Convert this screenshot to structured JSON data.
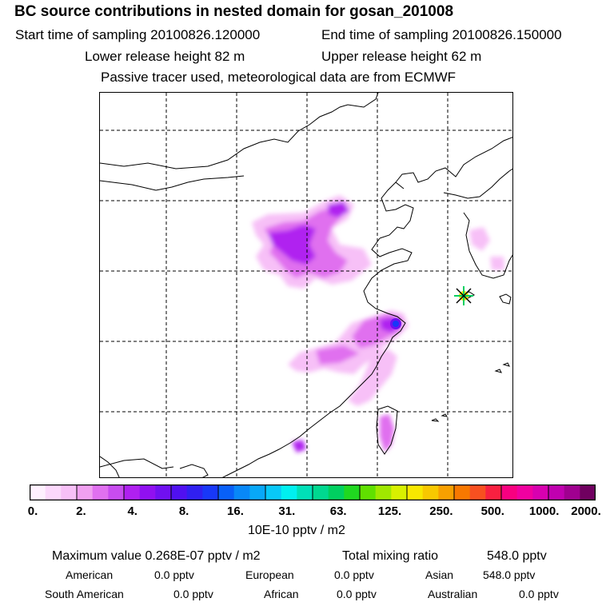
{
  "header": {
    "title": "BC  source contributions in nested domain for gosan_201008",
    "start_label": "Start time of sampling 20100826.120000",
    "end_label": "End time of sampling 20100826.150000",
    "lower_label": "Lower release height   82 m",
    "upper_label": "Upper release height   62 m",
    "tracer_note": "Passive tracer used, meteorological data are from ECMWF"
  },
  "colorbar": {
    "colors": [
      "#fef0fe",
      "#fbd8fb",
      "#f7c0f7",
      "#f0a0f0",
      "#e070ef",
      "#c84cef",
      "#b020f0",
      "#9010f0",
      "#7010f0",
      "#5010f0",
      "#3020f0",
      "#1838f8",
      "#0860f8",
      "#0888f8",
      "#08a8f8",
      "#08c8f8",
      "#00f0f0",
      "#00e0b8",
      "#00d890",
      "#00d060",
      "#20d820",
      "#60e000",
      "#a0e800",
      "#d8f000",
      "#f8e800",
      "#f8c800",
      "#f8a000",
      "#f87800",
      "#f85020",
      "#f82040",
      "#f80080",
      "#f000a0",
      "#d800b0",
      "#c000b0",
      "#a00090",
      "#700060"
    ],
    "ticks": [
      "0.",
      "2.",
      "4.",
      "8.",
      "16.",
      "31.",
      "63.",
      "125.",
      "250.",
      "500.",
      "1000.",
      "2000."
    ],
    "unit_label": "10E-10 pptv / m2"
  },
  "stats": {
    "max_value": "Maximum value  0.268E-07 pptv / m2",
    "total_mixing": "Total mixing ratio",
    "total_mixing_value": "548.0 pptv",
    "american_label": "American",
    "american_value": "0.0 pptv",
    "european_label": "European",
    "european_value": "0.0 pptv",
    "asian_label": "Asian",
    "asian_value": "548.0 pptv",
    "south_american_label": "South American",
    "south_american_value": "0.0 pptv",
    "african_label": "African",
    "african_value": "0.0 pptv",
    "australian_label": "Australian",
    "australian_value": "0.0 pptv"
  },
  "map": {
    "receptor": "gosan",
    "plume_colors": {
      "light": "#f7c0f7",
      "mid": "#e070ef",
      "strong": "#b020f0",
      "deep": "#7010f0",
      "peak": "#1838f8"
    },
    "receptor_marker_colors": [
      "#f8e800",
      "#00d060",
      "#000000"
    ]
  }
}
